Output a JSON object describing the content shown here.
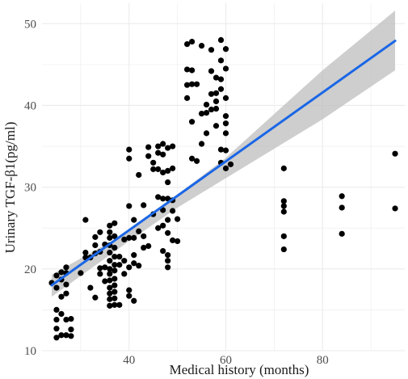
{
  "chart_data": {
    "type": "scatter",
    "title": "",
    "xlabel": "Medical history (months)",
    "ylabel": "Urinary TGF-β1(pg/ml)",
    "xlim": [
      22,
      97
    ],
    "ylim": [
      10,
      52.5
    ],
    "xticks": [
      40,
      60,
      80
    ],
    "yticks": [
      10,
      20,
      30,
      40,
      50
    ],
    "grid": true,
    "legend": "none",
    "colors": {
      "points": "#000000",
      "fit_line": "#1a66e6",
      "confidence_band": "#bdbdbd",
      "grid": "#ebebeb"
    },
    "points": [
      [
        24,
        18.3
      ],
      [
        25,
        17.7
      ],
      [
        25,
        19.2
      ],
      [
        25,
        15.0
      ],
      [
        25,
        13.8
      ],
      [
        25,
        12.7
      ],
      [
        25,
        11.6
      ],
      [
        26,
        19.6
      ],
      [
        26,
        18.7
      ],
      [
        26,
        16.6
      ],
      [
        26,
        14.5
      ],
      [
        26,
        11.9
      ],
      [
        27,
        20.2
      ],
      [
        27,
        19.5
      ],
      [
        27,
        18.1
      ],
      [
        27,
        17.0
      ],
      [
        27,
        13.8
      ],
      [
        27,
        11.9
      ],
      [
        28,
        13.9
      ],
      [
        28,
        12.6
      ],
      [
        28,
        11.8
      ],
      [
        30,
        19.5
      ],
      [
        31,
        26.0
      ],
      [
        31,
        22.0
      ],
      [
        31,
        21.4
      ],
      [
        32,
        17.7
      ],
      [
        32,
        21.4
      ],
      [
        33,
        23.9
      ],
      [
        33,
        22.9
      ],
      [
        33,
        21.9
      ],
      [
        33,
        16.5
      ],
      [
        34,
        24.5
      ],
      [
        34,
        22.1
      ],
      [
        34,
        20.1
      ],
      [
        34,
        19.4
      ],
      [
        35,
        23.0
      ],
      [
        35,
        20.2
      ],
      [
        35,
        18.5
      ],
      [
        36,
        25.3
      ],
      [
        36,
        24.5
      ],
      [
        36,
        23.8
      ],
      [
        36,
        22.9
      ],
      [
        36,
        22.0
      ],
      [
        36,
        21.0
      ],
      [
        36,
        20.0
      ],
      [
        36,
        19.4
      ],
      [
        36,
        18.6
      ],
      [
        36,
        17.7
      ],
      [
        36,
        17.0
      ],
      [
        36,
        16.3
      ],
      [
        36,
        15.5
      ],
      [
        37,
        25.6
      ],
      [
        37,
        24.0
      ],
      [
        37,
        22.6
      ],
      [
        37,
        21.5
      ],
      [
        37,
        20.5
      ],
      [
        37,
        19.8
      ],
      [
        37,
        18.8
      ],
      [
        37,
        18.0
      ],
      [
        37,
        17.2
      ],
      [
        37,
        16.4
      ],
      [
        37,
        15.6
      ],
      [
        38,
        21.5
      ],
      [
        38,
        20.5
      ],
      [
        38,
        15.6
      ],
      [
        39,
        23.6
      ],
      [
        39,
        21.0
      ],
      [
        39,
        19.4
      ],
      [
        40,
        34.6
      ],
      [
        40,
        33.5
      ],
      [
        40,
        27.7
      ],
      [
        40,
        23.8
      ],
      [
        40,
        20.2
      ],
      [
        40,
        17.4
      ],
      [
        40,
        16.7
      ],
      [
        41,
        26.0
      ],
      [
        41,
        23.8
      ],
      [
        41,
        21.7
      ],
      [
        41,
        20.7
      ],
      [
        41,
        16.1
      ],
      [
        42,
        31.5
      ],
      [
        42,
        24.6
      ],
      [
        42,
        20.4
      ],
      [
        43,
        27.8
      ],
      [
        43,
        24.0
      ],
      [
        43,
        22.6
      ],
      [
        44,
        34.9
      ],
      [
        44,
        33.8
      ],
      [
        44,
        22.8
      ],
      [
        45,
        33.0
      ],
      [
        45,
        32.2
      ],
      [
        45,
        26.7
      ],
      [
        46,
        35.0
      ],
      [
        46,
        34.2
      ],
      [
        46,
        32.2
      ],
      [
        46,
        28.8
      ],
      [
        46,
        25.0
      ],
      [
        47,
        35.3
      ],
      [
        47,
        34.0
      ],
      [
        47,
        31.8
      ],
      [
        47,
        28.6
      ],
      [
        47,
        27.2
      ],
      [
        47,
        25.3
      ],
      [
        47,
        22.2
      ],
      [
        48,
        34.8
      ],
      [
        48,
        32.0
      ],
      [
        48,
        30.6
      ],
      [
        48,
        28.6
      ],
      [
        48,
        26.0
      ],
      [
        48,
        24.4
      ],
      [
        48,
        21.7
      ],
      [
        48,
        21.0
      ],
      [
        48,
        20.2
      ],
      [
        49,
        35.0
      ],
      [
        49,
        32.3
      ],
      [
        49,
        28.4
      ],
      [
        49,
        27.1
      ],
      [
        49,
        23.5
      ],
      [
        50,
        26.1
      ],
      [
        50,
        23.4
      ],
      [
        52,
        47.5
      ],
      [
        52,
        44.4
      ],
      [
        52,
        42.5
      ],
      [
        52,
        40.9
      ],
      [
        53,
        47.8
      ],
      [
        53,
        44.3
      ],
      [
        53,
        42.6
      ],
      [
        53,
        38.0
      ],
      [
        53,
        33.5
      ],
      [
        54,
        42.6
      ],
      [
        54,
        33.2
      ],
      [
        55,
        47.3
      ],
      [
        55,
        39.0
      ],
      [
        55,
        35.3
      ],
      [
        56,
        40.1
      ],
      [
        56,
        39.1
      ],
      [
        56,
        36.6
      ],
      [
        57,
        46.8
      ],
      [
        57,
        44.2
      ],
      [
        57,
        41.4
      ],
      [
        57,
        39.5
      ],
      [
        58,
        43.4
      ],
      [
        58,
        41.5
      ],
      [
        58,
        40.5
      ],
      [
        58,
        39.6
      ],
      [
        58,
        37.5
      ],
      [
        59,
        48.0
      ],
      [
        59,
        45.5
      ],
      [
        59,
        43.2
      ],
      [
        59,
        42.0
      ],
      [
        59,
        34.6
      ],
      [
        59,
        33.0
      ],
      [
        60,
        46.9
      ],
      [
        60,
        44.5
      ],
      [
        60,
        40.9
      ],
      [
        60,
        38.7
      ],
      [
        60,
        37.8
      ],
      [
        60,
        36.6
      ],
      [
        60,
        34.5
      ],
      [
        60,
        32.3
      ],
      [
        61,
        32.8
      ],
      [
        72,
        32.3
      ],
      [
        72,
        28.3
      ],
      [
        72,
        27.7
      ],
      [
        72,
        27.0
      ],
      [
        72,
        24.0
      ],
      [
        72,
        22.4
      ],
      [
        84,
        28.9
      ],
      [
        84,
        27.5
      ],
      [
        84,
        24.3
      ],
      [
        95,
        34.1
      ],
      [
        95,
        27.4
      ]
    ],
    "fit": {
      "x": [
        24,
        95
      ],
      "y": [
        18.0,
        47.9
      ]
    },
    "confidence_band": {
      "x": [
        24,
        40,
        50,
        60,
        80,
        95
      ],
      "lower": [
        16.6,
        23.4,
        27.5,
        31.1,
        38.3,
        44.3
      ],
      "upper": [
        19.3,
        24.6,
        29.1,
        33.6,
        44.3,
        51.6
      ]
    }
  }
}
